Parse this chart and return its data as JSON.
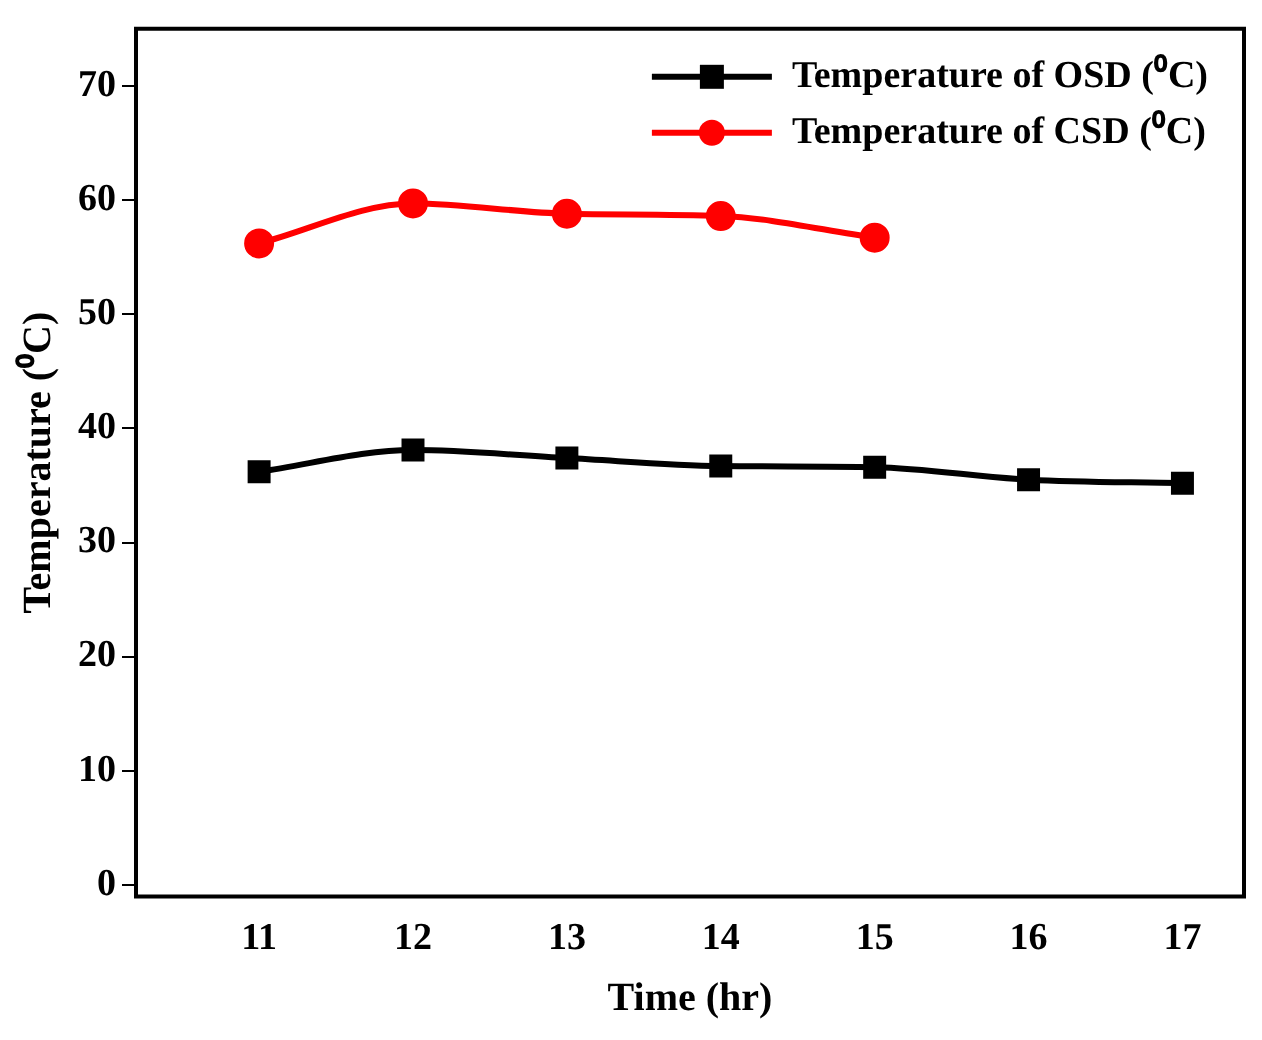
{
  "chart_data": {
    "type": "line",
    "xlabel": "Time (hr)",
    "ylabel": "Temperature (⁰C)",
    "x": [
      11,
      12,
      13,
      14,
      15,
      16,
      17
    ],
    "series": [
      {
        "name": "Temperature of OSD (⁰C)",
        "color": "#000000",
        "marker": "square",
        "values": [
          36.2,
          38.1,
          37.4,
          36.7,
          36.6,
          35.5,
          35.2
        ]
      },
      {
        "name": "Temperature of CSD (⁰C)",
        "color": "#ff0000",
        "marker": "circle",
        "values": [
          56.2,
          59.7,
          58.8,
          58.6,
          56.7,
          null,
          null
        ]
      }
    ],
    "xlim": [
      10.2,
      17.4
    ],
    "xticks": [
      11,
      12,
      13,
      14,
      15,
      16,
      17
    ],
    "ylim": [
      -1,
      75
    ],
    "yticks": [
      0,
      10,
      20,
      30,
      40,
      50,
      60,
      70
    ],
    "grid": false,
    "legend": "top right"
  }
}
